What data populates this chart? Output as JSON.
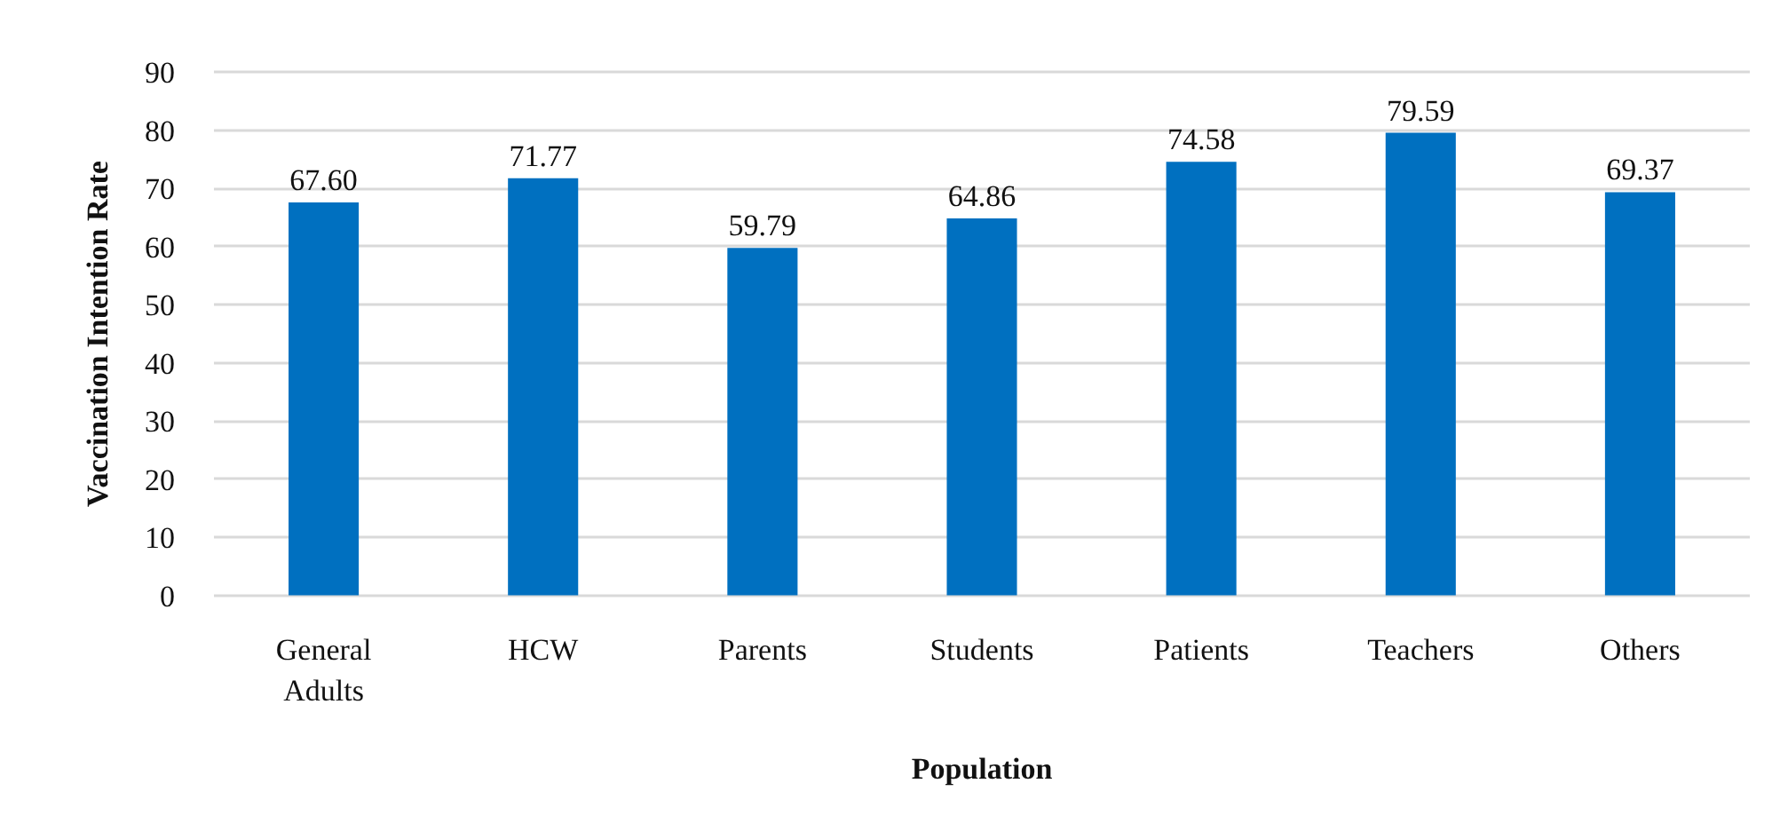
{
  "chart_data": {
    "type": "bar",
    "xlabel": "Population",
    "ylabel": "Vaccination Intention Rate",
    "categories": [
      "General Adults",
      "HCW",
      "Parents",
      "Students",
      "Patients",
      "Teachers",
      "Others"
    ],
    "values": [
      67.6,
      71.77,
      59.79,
      64.86,
      74.58,
      79.59,
      69.37
    ],
    "value_labels": [
      "67.60",
      "71.77",
      "59.79",
      "64.86",
      "74.58",
      "79.59",
      "69.37"
    ],
    "color": "#0070c0",
    "ylim": [
      0,
      90
    ],
    "yticks": [
      0,
      10,
      20,
      30,
      40,
      50,
      60,
      70,
      80,
      90
    ],
    "grid": "y"
  }
}
